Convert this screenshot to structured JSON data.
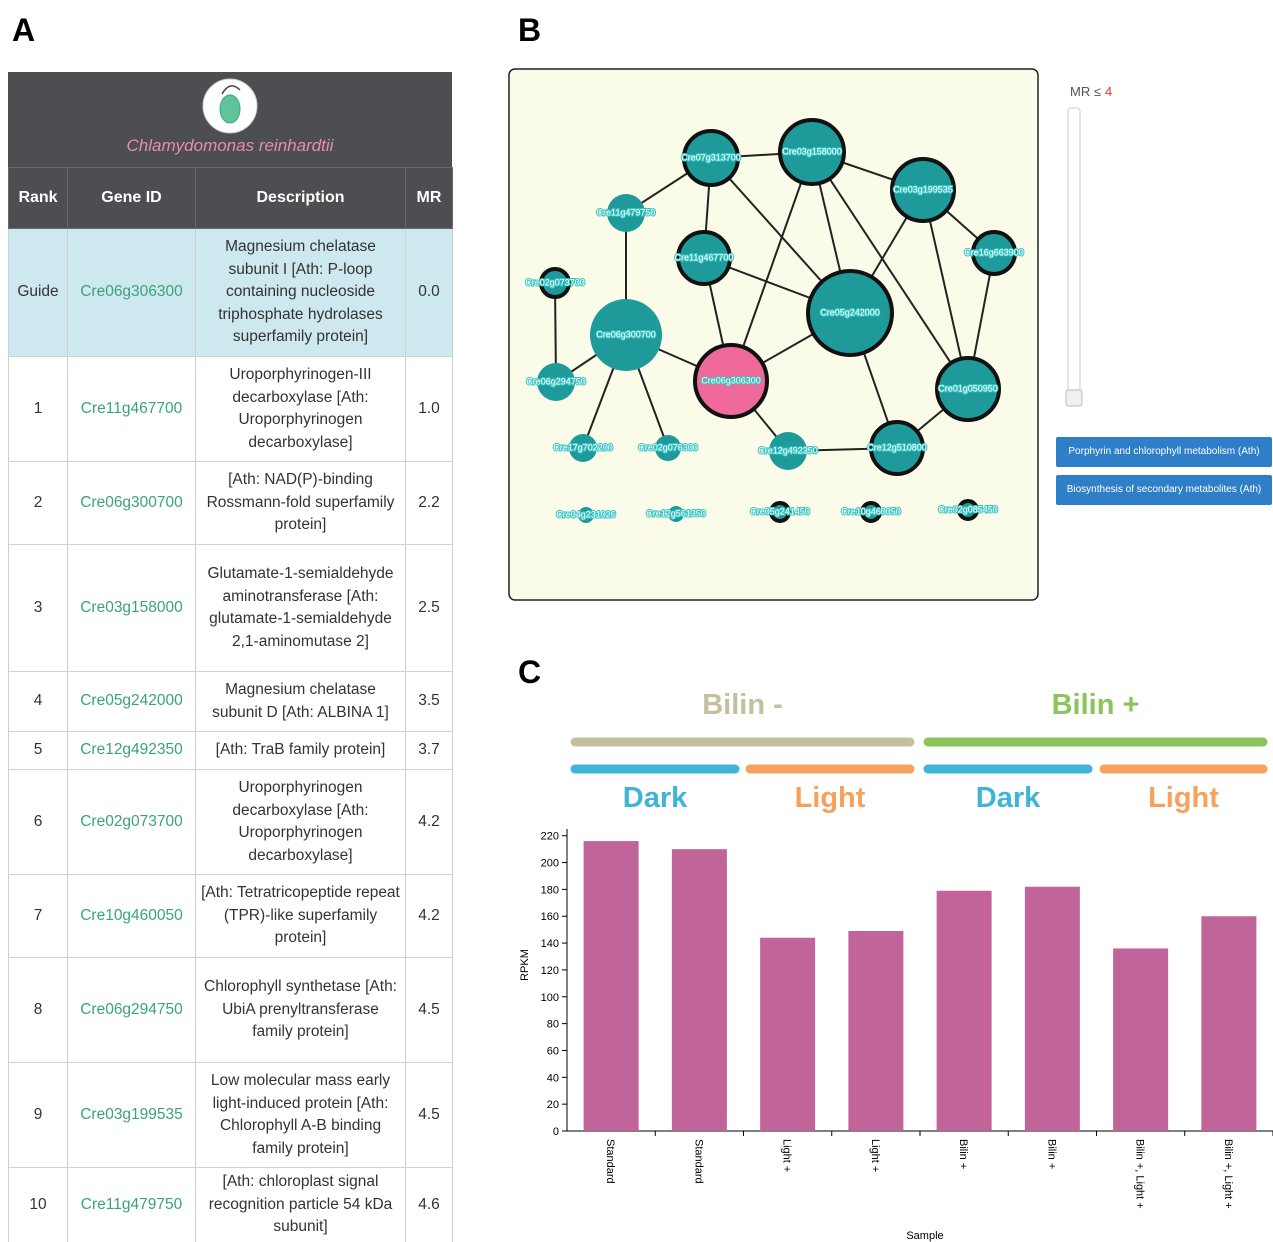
{
  "panel_a": {
    "label": "A",
    "organism": "Chlamydomonas reinhardtii",
    "table": {
      "header": [
        "Rank",
        "Gene ID",
        "Description",
        "MR"
      ],
      "rows": [
        [
          "Guide",
          "Cre06g306300",
          "Magnesium chelatase subunit I [Ath: P-loop containing nucleoside triphosphate hydrolases superfamily protein]",
          "0.0"
        ],
        [
          "1",
          "Cre11g467700",
          "Uroporphyrinogen-III decarboxylase [Ath: Uroporphyrinogen decarboxylase]",
          "1.0"
        ],
        [
          "2",
          "Cre06g300700",
          "[Ath: NAD(P)-binding Rossmann-fold superfamily protein]",
          "2.2"
        ],
        [
          "3",
          "Cre03g158000",
          "Glutamate-1-semialdehyde aminotransferase [Ath: glutamate-1-semialdehyde 2,1-aminomutase 2]",
          "2.5"
        ],
        [
          "4",
          "Cre05g242000",
          "Magnesium chelatase subunit D [Ath: ALBINA 1]",
          "3.5"
        ],
        [
          "5",
          "Cre12g492350",
          "[Ath: TraB family protein]",
          "3.7"
        ],
        [
          "6",
          "Cre02g073700",
          "Uroporphyrinogen decarboxylase [Ath: Uroporphyrinogen decarboxylase]",
          "4.2"
        ],
        [
          "7",
          "Cre10g460050",
          "[Ath: Tetratricopeptide repeat (TPR)-like superfamily protein]",
          "4.2"
        ],
        [
          "8",
          "Cre06g294750",
          "Chlorophyll synthetase [Ath: UbiA prenyltransferase family protein]",
          "4.5"
        ],
        [
          "9",
          "Cre03g199535",
          "Low molecular mass early light-induced protein [Ath: Chlorophyll A-B binding family protein]",
          "4.5"
        ],
        [
          "10",
          "Cre11g479750",
          "[Ath: chloroplast signal recognition particle 54 kDa subunit]",
          "4.6"
        ]
      ]
    }
  },
  "panel_b": {
    "label": "B",
    "slider_label": "MR ≤",
    "slider_value": 4,
    "nodes": [
      "Cre07g313700",
      "Cre03g158000",
      "Cre03g199535",
      "Cre11g479750",
      "Cre16g663900",
      "Cre11g467700",
      "Cre02g073700",
      "Cre05g242000",
      "Cre06g300700",
      "Cre06g306300",
      "Cre06g294750",
      "Cre01g050950",
      "Cre17g702200",
      "Cre02g076300",
      "Cre12g492350",
      "Cre12g510800",
      "Cre04g231026",
      "Cre12g561350",
      "Cre05g241450",
      "Cre10g460050",
      "Cre02g085450"
    ],
    "buttons": [
      "Porphyrin and chlorophyll metabolism (Ath)",
      "Biosynthesis of secondary metabolites (Ath)"
    ]
  },
  "chart_data": {
    "panel_label": "C",
    "type": "bar",
    "group_labels": [
      "Bilin -",
      "Bilin +"
    ],
    "group_colors": [
      "#c4bf9c",
      "#8cc45c"
    ],
    "subgroup_labels": [
      "Dark",
      "Light",
      "Dark",
      "Light"
    ],
    "subgroup_colors": [
      "#3fb4d8",
      "#f5a25e",
      "#3fb4d8",
      "#f5a25e"
    ],
    "categories": [
      "Standard",
      "Standard",
      "Light +",
      "Light +",
      "Bilin +",
      "Bilin +",
      "Bilin +, Light +",
      "Bilin +, Light +"
    ],
    "values": [
      216,
      210,
      144,
      149,
      179,
      182,
      136,
      160
    ],
    "color": "#c0649a",
    "x_label": "Sample",
    "y_label": "RPKM",
    "ylim": [
      0,
      225
    ],
    "yticks": [
      0,
      20,
      40,
      60,
      80,
      100,
      120,
      140,
      160,
      180,
      200,
      220
    ]
  }
}
